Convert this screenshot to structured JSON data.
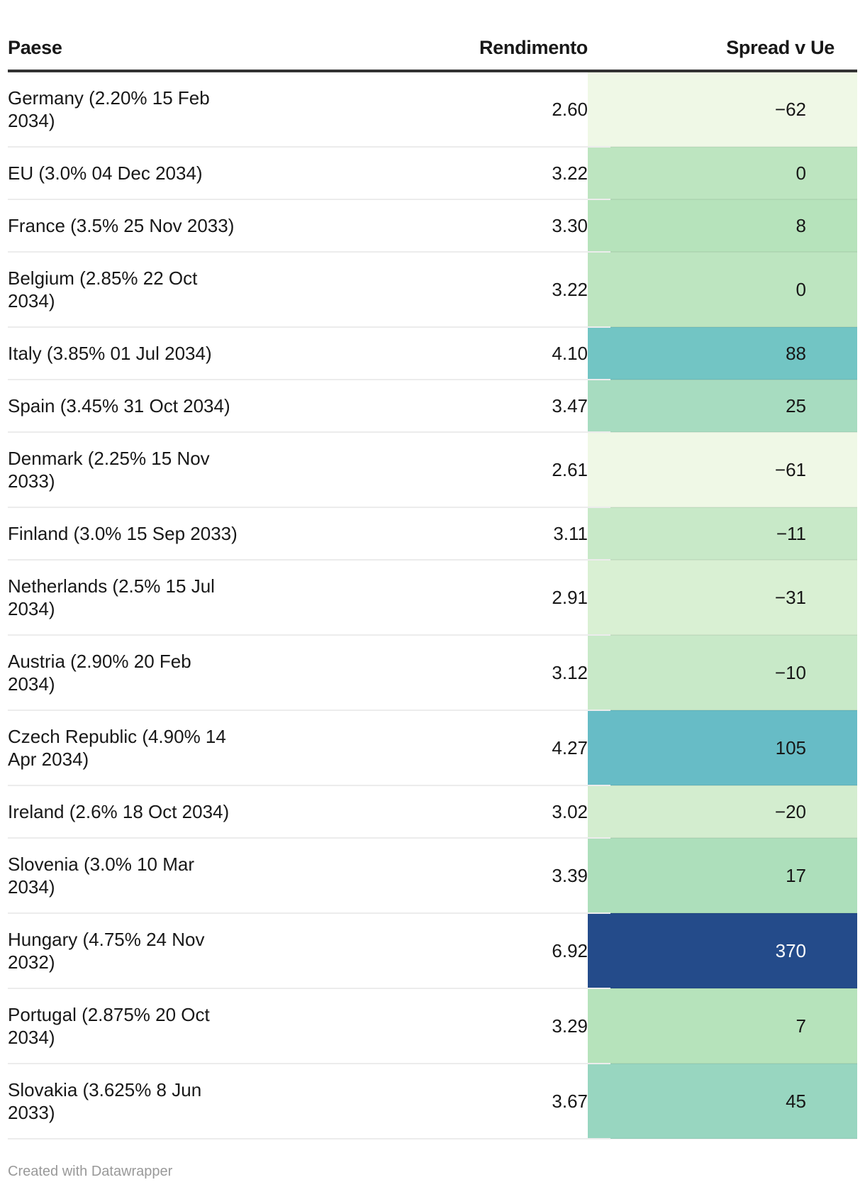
{
  "headers": {
    "country": "Paese",
    "yield": "Rendimento",
    "spread": "Spread v Ue"
  },
  "rows": [
    {
      "name": "Germany (2.20% 15 Feb 2034)",
      "yield": "2.60",
      "spread": "−62",
      "color": "#eff8e6",
      "text_color": "#181818"
    },
    {
      "name": "EU (3.0% 04 Dec 2034)",
      "yield": "3.22",
      "spread": "0",
      "color": "#bde5c0",
      "text_color": "#181818"
    },
    {
      "name": "France (3.5% 25 Nov 2033)",
      "yield": "3.30",
      "spread": "8",
      "color": "#b6e3bb",
      "text_color": "#181818"
    },
    {
      "name": "Belgium (2.85% 22 Oct 2034)",
      "yield": "3.22",
      "spread": "0",
      "color": "#bde5c0",
      "text_color": "#181818"
    },
    {
      "name": "Italy (3.85% 01 Jul 2034)",
      "yield": "4.10",
      "spread": "88",
      "color": "#72c5c4",
      "text_color": "#181818"
    },
    {
      "name": "Spain (3.45% 31 Oct 2034)",
      "yield": "3.47",
      "spread": "25",
      "color": "#a7dcc0",
      "text_color": "#181818"
    },
    {
      "name": "Denmark (2.25% 15 Nov 2033)",
      "yield": "2.61",
      "spread": "−61",
      "color": "#eff8e6",
      "text_color": "#181818"
    },
    {
      "name": "Finland (3.0% 15 Sep 2033)",
      "yield": "3.11",
      "spread": "−11",
      "color": "#c8e9c8",
      "text_color": "#181818"
    },
    {
      "name": "Netherlands (2.5% 15 Jul 2034)",
      "yield": "2.91",
      "spread": "−31",
      "color": "#d9f0d3",
      "text_color": "#181818"
    },
    {
      "name": "Austria (2.90% 20 Feb 2034)",
      "yield": "3.12",
      "spread": "−10",
      "color": "#c8e9c8",
      "text_color": "#181818"
    },
    {
      "name": "Czech Republic (4.90% 14 Apr 2034)",
      "yield": "4.27",
      "spread": "105",
      "color": "#67bcc6",
      "text_color": "#181818"
    },
    {
      "name": "Ireland (2.6% 18 Oct 2034)",
      "yield": "3.02",
      "spread": "−20",
      "color": "#d3edcf",
      "text_color": "#181818"
    },
    {
      "name": "Slovenia (3.0% 10 Mar 2034)",
      "yield": "3.39",
      "spread": "17",
      "color": "#addfbb",
      "text_color": "#181818"
    },
    {
      "name": "Hungary (4.75% 24 Nov 2032)",
      "yield": "6.92",
      "spread": "370",
      "color": "#244b8a",
      "text_color": "#ffffff"
    },
    {
      "name": "Portugal (2.875% 20 Oct 2034)",
      "yield": "3.29",
      "spread": "7",
      "color": "#b6e3bb",
      "text_color": "#181818"
    },
    {
      "name": "Slovakia (3.625% 8 Jun 2033)",
      "yield": "3.67",
      "spread": "45",
      "color": "#98d6c0",
      "text_color": "#181818"
    }
  ],
  "footer": "Created with Datawrapper"
}
